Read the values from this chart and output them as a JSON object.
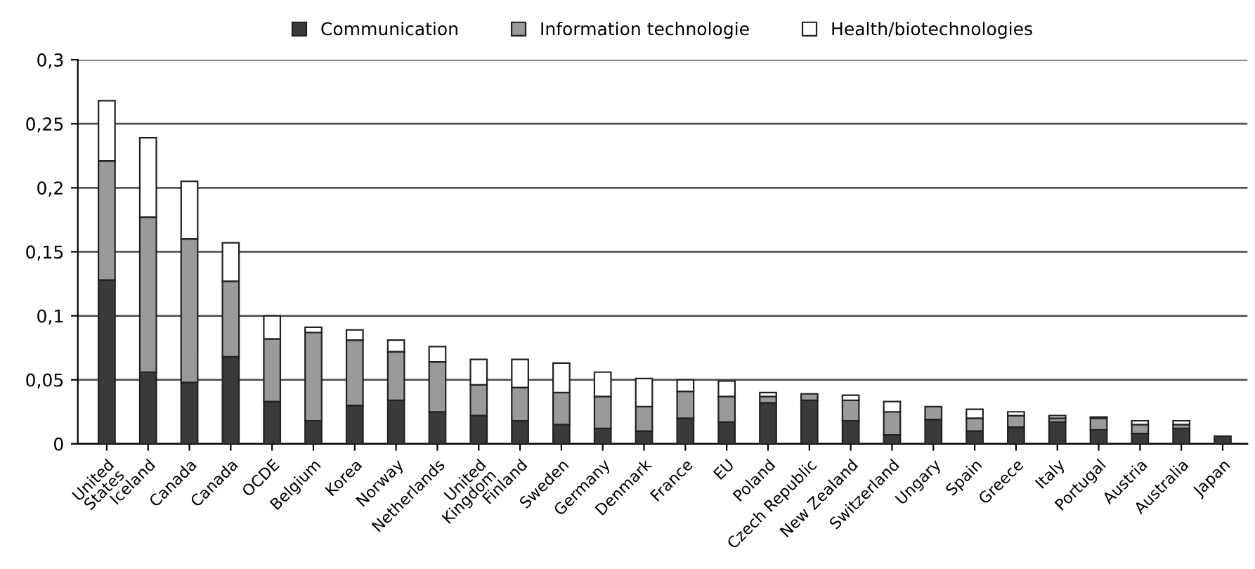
{
  "chart_data": {
    "type": "bar",
    "stacked": true,
    "categories": [
      "United\nStates",
      "Iceland",
      "Canada",
      "Canada",
      "OCDE",
      "Belgium",
      "Korea",
      "Norway",
      "Netherlands",
      "United\nKingdom",
      "Finland",
      "Sweden",
      "Germany",
      "Denmark",
      "France",
      "EU",
      "Poland",
      "Czech Republic",
      "New Zealand",
      "Switzerland",
      "Ungary",
      "Spain",
      "Greece",
      "Italy",
      "Portugal",
      "Austria",
      "Australia",
      "Japan"
    ],
    "series": [
      {
        "name": "Communication",
        "color": "#3a3a3a",
        "values": [
          0.128,
          0.056,
          0.048,
          0.068,
          0.033,
          0.018,
          0.03,
          0.034,
          0.025,
          0.022,
          0.018,
          0.015,
          0.012,
          0.01,
          0.02,
          0.017,
          0.032,
          0.034,
          0.018,
          0.007,
          0.019,
          0.01,
          0.013,
          0.017,
          0.011,
          0.008,
          0.012,
          0.006
        ]
      },
      {
        "name": "Information technologie",
        "color": "#9a9a9a",
        "values": [
          0.093,
          0.121,
          0.112,
          0.059,
          0.049,
          0.069,
          0.051,
          0.038,
          0.039,
          0.024,
          0.026,
          0.025,
          0.025,
          0.019,
          0.021,
          0.02,
          0.005,
          0.005,
          0.016,
          0.018,
          0.01,
          0.01,
          0.009,
          0.003,
          0.009,
          0.007,
          0.003,
          0
        ]
      },
      {
        "name": "Health/biotechnologies",
        "color": "#ffffff",
        "values": [
          0.047,
          0.062,
          0.045,
          0.03,
          0.018,
          0.004,
          0.008,
          0.009,
          0.012,
          0.02,
          0.022,
          0.023,
          0.019,
          0.022,
          0.009,
          0.012,
          0.003,
          0,
          0.004,
          0.008,
          0,
          0.007,
          0.003,
          0.002,
          0.001,
          0.003,
          0.003,
          0
        ]
      }
    ],
    "ylim": [
      0,
      0.3
    ],
    "yticks": [
      {
        "value": 0,
        "label": "0"
      },
      {
        "value": 0.05,
        "label": "0,05"
      },
      {
        "value": 0.1,
        "label": "0,1"
      },
      {
        "value": 0.15,
        "label": "0,15"
      },
      {
        "value": 0.2,
        "label": "0,2"
      },
      {
        "value": 0.25,
        "label": "0,25"
      },
      {
        "value": 0.3,
        "label": "0,3"
      }
    ],
    "grid": "y",
    "legend": "top"
  }
}
